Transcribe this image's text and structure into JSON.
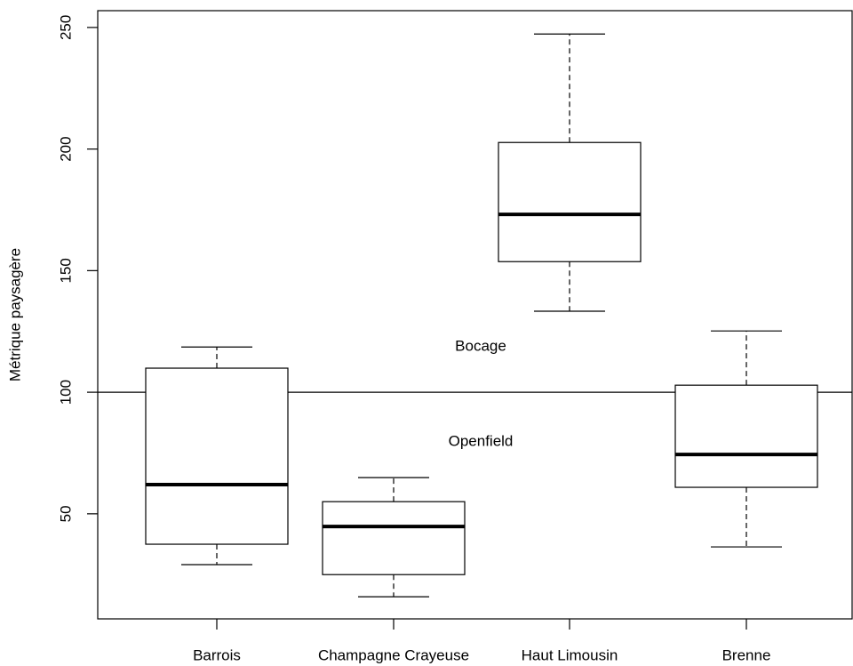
{
  "chart_data": {
    "type": "box",
    "ylabel": "Métrique paysagère",
    "categories": [
      "Barrois",
      "Champagne Crayeuse",
      "Haut Limousin",
      "Brenne"
    ],
    "boxes": [
      {
        "whislo": 29.1,
        "q1": 37.5,
        "med": 62,
        "q3": 109.9,
        "whishi": 118.6
      },
      {
        "whislo": 15.9,
        "q1": 25,
        "med": 44.8,
        "q3": 55,
        "whishi": 64.9
      },
      {
        "whislo": 133.3,
        "q1": 153.7,
        "med": 173.1,
        "q3": 202.7,
        "whishi": 247.3
      },
      {
        "whislo": 36.4,
        "q1": 60.9,
        "med": 74.4,
        "q3": 102.9,
        "whishi": 125.2
      }
    ],
    "ylim": [
      6.8,
      256.9
    ],
    "yticks": [
      50,
      100,
      150,
      200,
      250
    ],
    "hline": 100,
    "annotations": [
      "Bocage",
      "Openfield"
    ],
    "color": "#ffffff"
  }
}
